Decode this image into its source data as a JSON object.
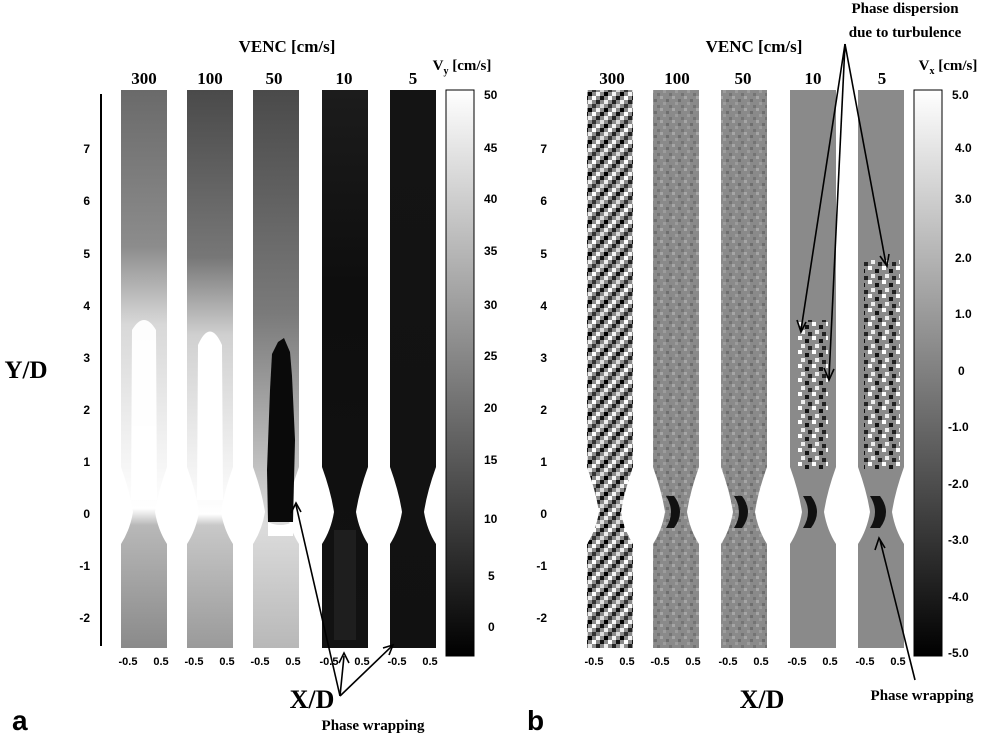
{
  "panel_a": {
    "letter": "a",
    "venc_title": "VENC [cm/s]",
    "venc_values": [
      "300",
      "100",
      "50",
      "10",
      "5"
    ],
    "colorbar_title": "V",
    "colorbar_sub": "y",
    "colorbar_unit": " [cm/s]",
    "colorbar_ticks": [
      "50",
      "45",
      "40",
      "35",
      "30",
      "25",
      "20",
      "15",
      "10",
      "5",
      "0"
    ],
    "y_axis_label": "Y/D",
    "y_ticks": [
      "7",
      "6",
      "5",
      "4",
      "3",
      "2",
      "1",
      "0",
      "-1",
      "-2"
    ],
    "x_tick_left": "-0.5",
    "x_tick_right": "0.5",
    "x_axis_label": "X/D",
    "annotation": "Phase wrapping"
  },
  "panel_b": {
    "letter": "b",
    "venc_title": "VENC [cm/s]",
    "venc_values": [
      "300",
      "100",
      "50",
      "10",
      "5"
    ],
    "colorbar_title": "V",
    "colorbar_sub": "x",
    "colorbar_unit": " [cm/s]",
    "colorbar_ticks": [
      "5.0",
      "4.0",
      "3.0",
      "2.0",
      "1.0",
      "0",
      "-1.0",
      "-2.0",
      "-3.0",
      "-4.0",
      "-5.0"
    ],
    "y_ticks": [
      "7",
      "6",
      "5",
      "4",
      "3",
      "2",
      "1",
      "0",
      "-1",
      "-2"
    ],
    "x_tick_left": "-0.5",
    "x_tick_right": "0.5",
    "x_axis_label": "X/D",
    "annotation_top_line1": "Phase dispersion",
    "annotation_top_line2": "due to turbulence",
    "annotation_bottom": "Phase wrapping"
  }
}
